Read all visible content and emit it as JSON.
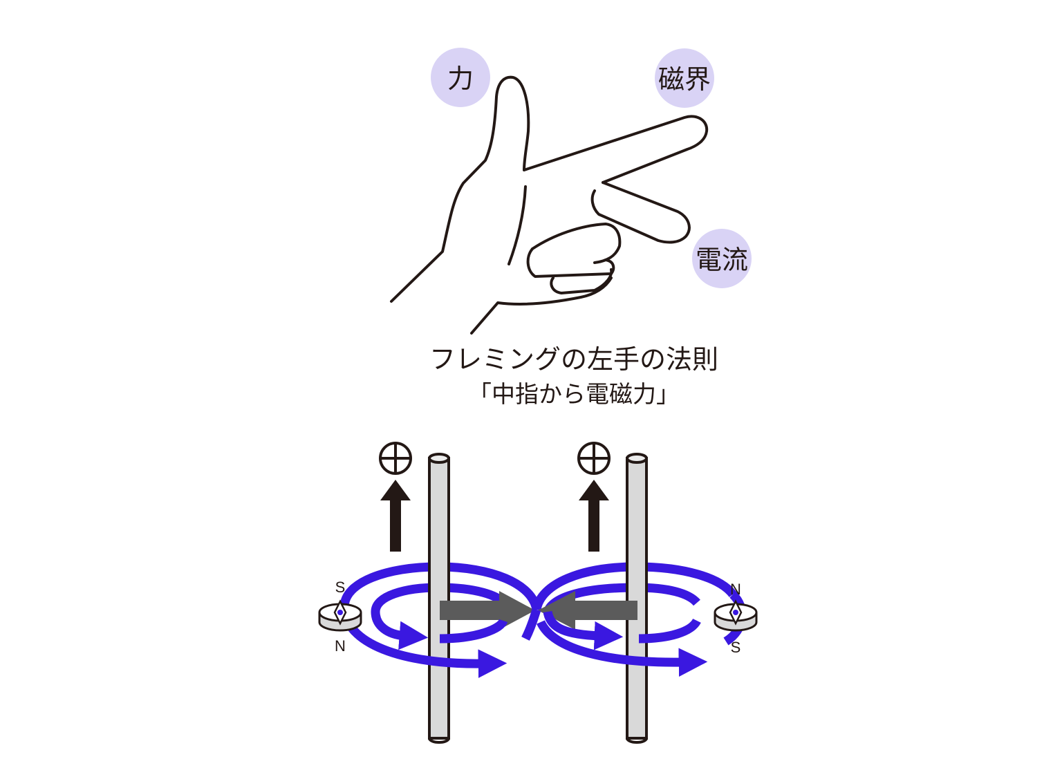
{
  "colors": {
    "label_circle": "#d9d3f5",
    "field": "#3a18e0",
    "force_arrow": "#5b5b5b",
    "wire_fill": "#d9d9d9",
    "outline": "#231815"
  },
  "hand": {
    "labels": {
      "force": "力",
      "magnetic_field": "磁界",
      "current": "電流"
    }
  },
  "caption": {
    "line1": "フレミングの左手の法則",
    "line2": "「中指から電磁力」"
  },
  "compass_left": {
    "top": "S",
    "bottom": "N"
  },
  "compass_right": {
    "top": "N",
    "bottom": "S"
  }
}
